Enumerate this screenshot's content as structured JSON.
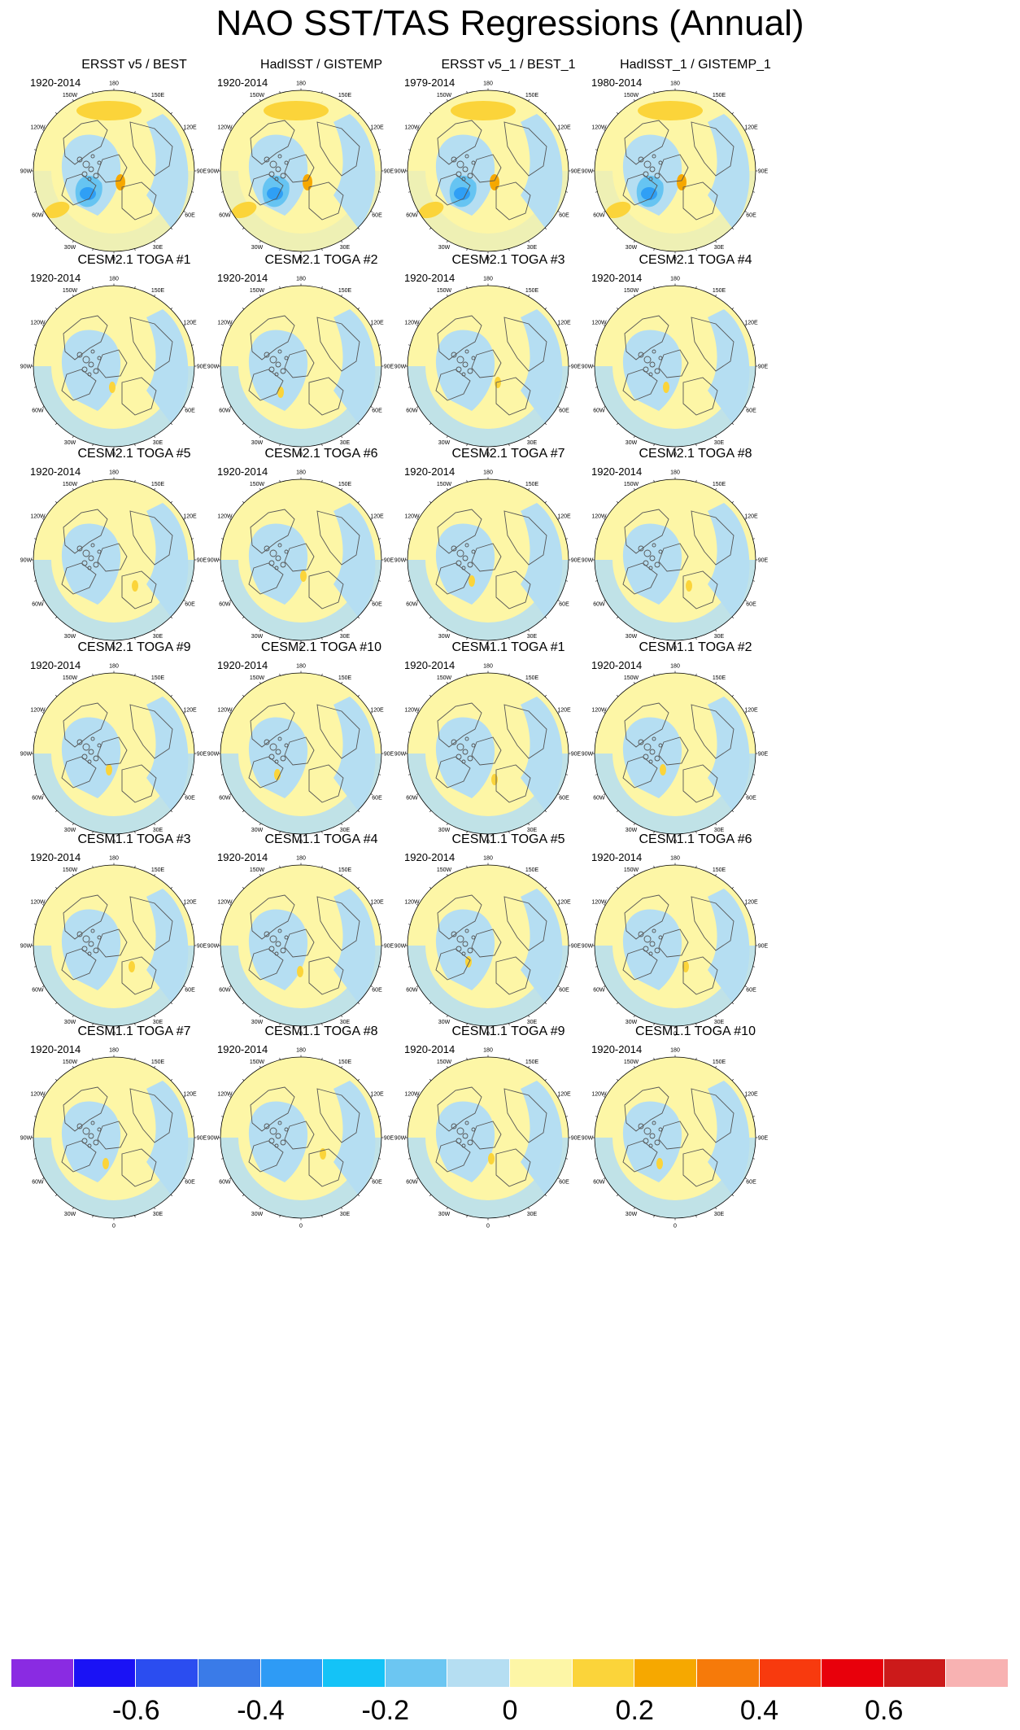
{
  "title": "NAO SST/TAS Regressions (Annual)",
  "map_labels": {
    "lon_180": "180",
    "lon_150w": "150W",
    "lon_150e": "150E",
    "lon_120w": "120W",
    "lon_120e": "120E",
    "lon_90w": "90W",
    "lon_90e": "90E",
    "lon_60w": "60W",
    "lon_60e": "60E",
    "lon_30w": "30W",
    "lon_30e": "30E",
    "lon_0": "0"
  },
  "panels": [
    {
      "title": "ERSST v5 / BEST",
      "period": "1920-2014",
      "pattern": "observed"
    },
    {
      "title": "HadISST / GISTEMP",
      "period": "1920-2014",
      "pattern": "observed"
    },
    {
      "title": "ERSST v5_1 / BEST_1",
      "period": "1979-2014",
      "pattern": "observed"
    },
    {
      "title": "HadISST_1 / GISTEMP_1",
      "period": "1980-2014",
      "pattern": "observed"
    },
    {
      "title": "CESM2.1 TOGA #1",
      "period": "1920-2014",
      "pattern": "model"
    },
    {
      "title": "CESM2.1 TOGA #2",
      "period": "1920-2014",
      "pattern": "model"
    },
    {
      "title": "CESM2.1 TOGA #3",
      "period": "1920-2014",
      "pattern": "model"
    },
    {
      "title": "CESM2.1 TOGA #4",
      "period": "1920-2014",
      "pattern": "model"
    },
    {
      "title": "CESM2.1 TOGA #5",
      "period": "1920-2014",
      "pattern": "model"
    },
    {
      "title": "CESM2.1 TOGA #6",
      "period": "1920-2014",
      "pattern": "model"
    },
    {
      "title": "CESM2.1 TOGA #7",
      "period": "1920-2014",
      "pattern": "model"
    },
    {
      "title": "CESM2.1 TOGA #8",
      "period": "1920-2014",
      "pattern": "model"
    },
    {
      "title": "CESM2.1 TOGA #9",
      "period": "1920-2014",
      "pattern": "model"
    },
    {
      "title": "CESM2.1 TOGA #10",
      "period": "1920-2014",
      "pattern": "model"
    },
    {
      "title": "CESM1.1 TOGA #1",
      "period": "1920-2014",
      "pattern": "model"
    },
    {
      "title": "CESM1.1 TOGA #2",
      "period": "1920-2014",
      "pattern": "model"
    },
    {
      "title": "CESM1.1 TOGA #3",
      "period": "1920-2014",
      "pattern": "model"
    },
    {
      "title": "CESM1.1 TOGA #4",
      "period": "1920-2014",
      "pattern": "model"
    },
    {
      "title": "CESM1.1 TOGA #5",
      "period": "1920-2014",
      "pattern": "model"
    },
    {
      "title": "CESM1.1 TOGA #6",
      "period": "1920-2014",
      "pattern": "model"
    },
    {
      "title": "CESM1.1 TOGA #7",
      "period": "1920-2014",
      "pattern": "model"
    },
    {
      "title": "CESM1.1 TOGA #8",
      "period": "1920-2014",
      "pattern": "model"
    },
    {
      "title": "CESM1.1 TOGA #9",
      "period": "1920-2014",
      "pattern": "model"
    },
    {
      "title": "CESM1.1 TOGA #10",
      "period": "1920-2014",
      "pattern": "model"
    }
  ],
  "colors": {
    "map_background": "#fdf6a6",
    "negative_weak": "#b5def2",
    "negative_mid": "#66c4f2",
    "negative_strong": "#2f9ff5",
    "positive_mid": "#fbd43a",
    "positive_strong": "#f6a800",
    "coastline": "#555555"
  },
  "colorbar": {
    "colors": [
      "#8a2be2",
      "#1a12f5",
      "#2b4df0",
      "#3a7be8",
      "#2e9bf5",
      "#14c3f7",
      "#6cc6f2",
      "#b5def2",
      "#fdf6a6",
      "#fbd43a",
      "#f6a800",
      "#f67a0a",
      "#f83a0e",
      "#e8000b",
      "#cc1a1a",
      "#f8b2b2"
    ],
    "labels": [
      "-0.6",
      "-0.4",
      "-0.2",
      "0",
      "0.2",
      "0.4",
      "0.6"
    ],
    "label_boundaries": [
      2,
      4,
      6,
      8,
      10,
      12,
      14
    ]
  }
}
